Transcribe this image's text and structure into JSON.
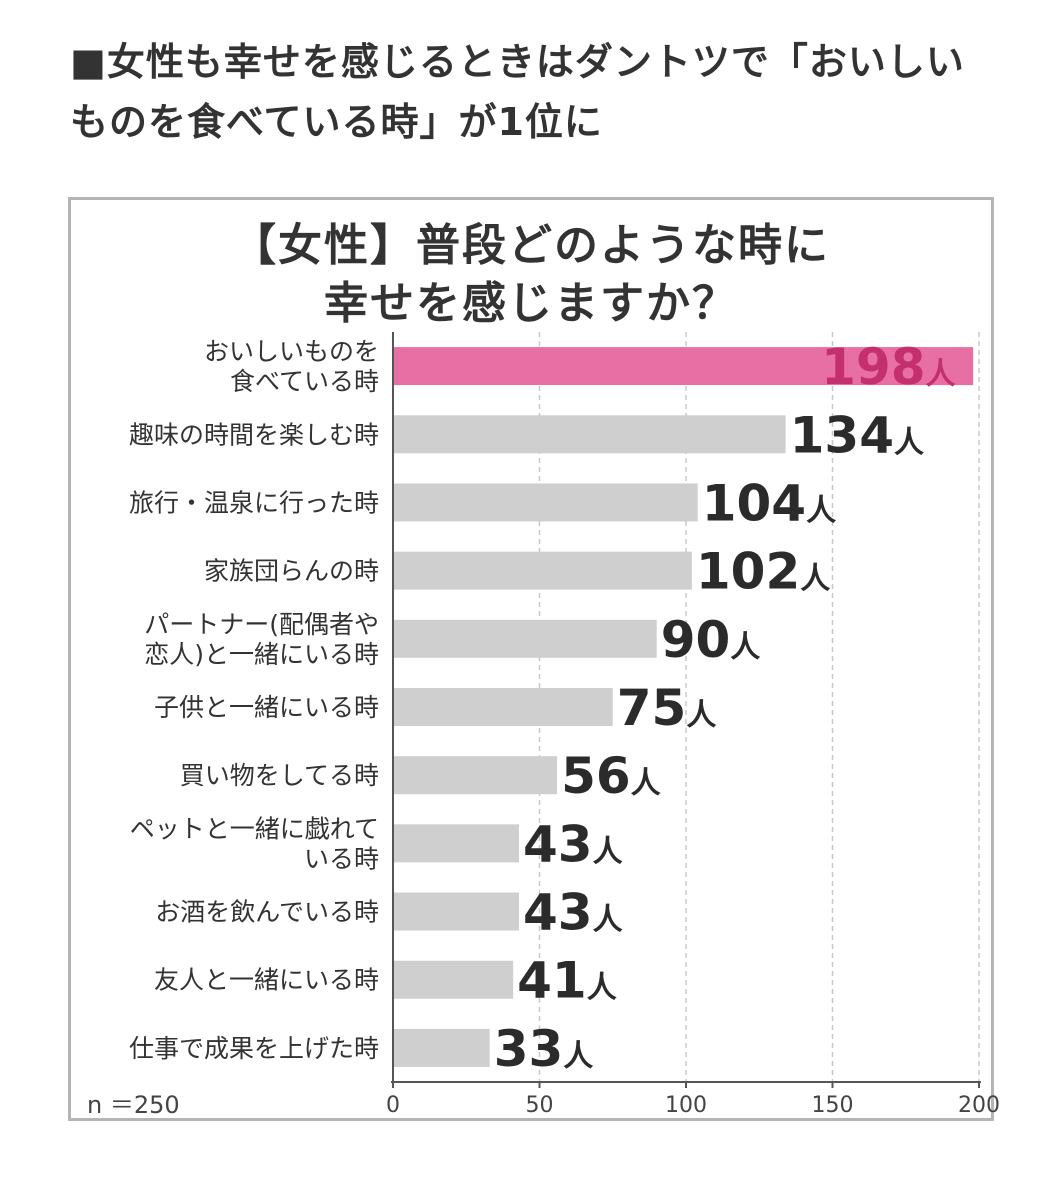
{
  "headline": "■女性も幸せを感じるときはダントツで「おいしいものを食べている時」が1位に",
  "chart_data": {
    "type": "bar",
    "orientation": "horizontal",
    "title_lines": [
      "【女性】普段どのような時に",
      "幸せを感じますか？"
    ],
    "categories": [
      [
        "おいしいものを",
        "食べている時"
      ],
      [
        "趣味の時間を楽しむ時"
      ],
      [
        "旅行・温泉に行った時"
      ],
      [
        "家族団らんの時"
      ],
      [
        "パートナー(配偶者や",
        "恋人)と一緒にいる時"
      ],
      [
        "子供と一緒にいる時"
      ],
      [
        "買い物をしてる時"
      ],
      [
        "ペットと一緒に戯れて",
        "いる時"
      ],
      [
        "お酒を飲んでいる時"
      ],
      [
        "友人と一緒にいる時"
      ],
      [
        "仕事で成果を上げた時"
      ]
    ],
    "values": [
      198,
      134,
      104,
      102,
      90,
      75,
      56,
      43,
      43,
      41,
      33
    ],
    "unit": "人",
    "highlight_index": 0,
    "xlim": [
      0,
      200
    ],
    "xticks": [
      0,
      50,
      100,
      150,
      200
    ],
    "grid": "dashed vertical",
    "sample_note": "n ＝250",
    "colors": {
      "highlight_bar": "#e86fa3",
      "highlight_label": "#c4306e",
      "bar": "#cfcfcf",
      "value_label": "#2b2b2b",
      "grid": "#c8c8c8"
    }
  }
}
